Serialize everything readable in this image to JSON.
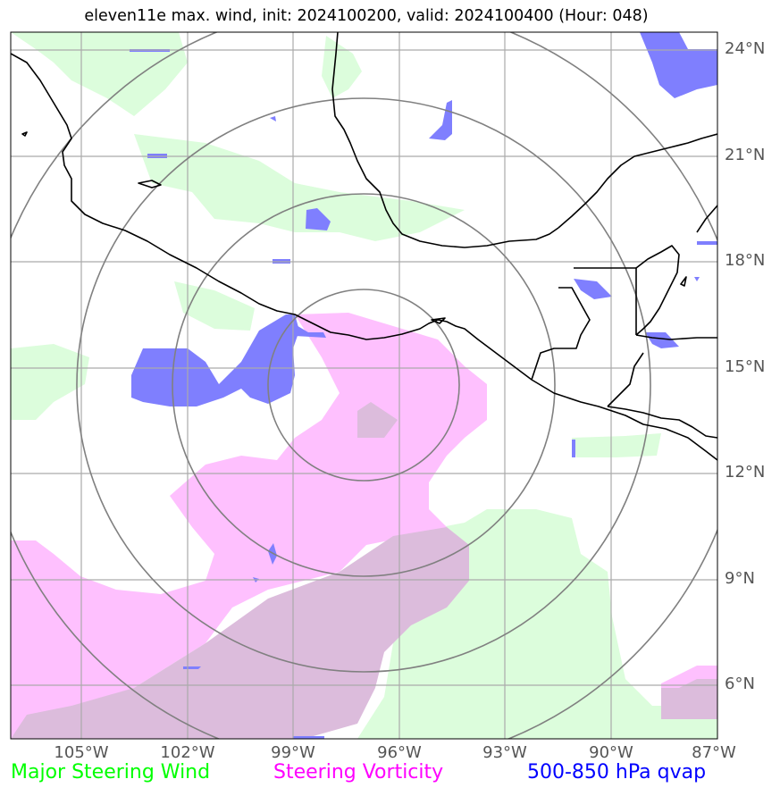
{
  "title": "eleven11e max. wind, init: 2024100200, valid: 2024100400 (Hour: 048)",
  "map": {
    "lat_labels": [
      "24°N",
      "21°N",
      "18°N",
      "15°N",
      "12°N",
      "9°N",
      "6°N"
    ],
    "lon_labels": [
      "105°W",
      "102°W",
      "99°W",
      "96°W",
      "93°W",
      "90°W",
      "87°W"
    ],
    "extent": {
      "west": "107°W",
      "east": "87°W",
      "south": "4.5°N",
      "north": "24.5°N"
    },
    "range_rings": 4,
    "storm_center": {
      "lon": -97.0,
      "lat": 15.0
    }
  },
  "legend": {
    "steering_wind": {
      "label": "Major Steering Wind",
      "color": "#00ff00"
    },
    "steering_vorticity": {
      "label": "Steering Vorticity",
      "color": "#ff00ff"
    },
    "qvap": {
      "label": "500-850 hPa qvap",
      "color": "#0000ff"
    }
  },
  "colors": {
    "wind_fill": "#dcfddc",
    "vorticity_fill": "#fec0fe",
    "overlap_fill": "#dcbcdc",
    "qvap_fill": "#7f7ffe",
    "grid": "#aaaaaa",
    "rings": "#808080",
    "coast": "#000000"
  }
}
